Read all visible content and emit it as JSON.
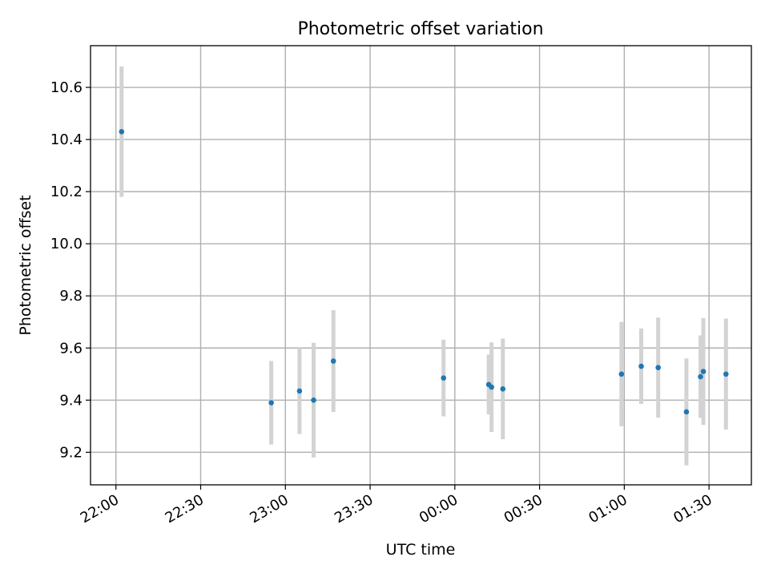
{
  "chart_data": {
    "type": "scatter",
    "title": "Photometric offset variation",
    "xlabel": "UTC time",
    "ylabel": "Photometric offset",
    "x_tick_labels": [
      "22:00",
      "22:30",
      "23:00",
      "23:30",
      "00:00",
      "00:30",
      "01:00",
      "01:30"
    ],
    "y_tick_labels": [
      "9.2",
      "9.4",
      "9.6",
      "9.8",
      "10.0",
      "10.2",
      "10.4",
      "10.6"
    ],
    "y_ticks": [
      9.2,
      9.4,
      9.6,
      9.8,
      10.0,
      10.2,
      10.4,
      10.6
    ],
    "xlim": [
      "21:51",
      "01:45"
    ],
    "ylim": [
      9.075,
      10.76
    ],
    "grid": true,
    "series": [
      {
        "points": [
          {
            "x": "22:02",
            "y": 10.43,
            "err": 0.25
          },
          {
            "x": "22:55",
            "y": 9.39,
            "err": 0.16
          },
          {
            "x": "23:05",
            "y": 9.435,
            "err": 0.165
          },
          {
            "x": "23:10",
            "y": 9.4,
            "err": 0.22
          },
          {
            "x": "23:17",
            "y": 9.55,
            "err": 0.195
          },
          {
            "x": "23:56",
            "y": 9.485,
            "err": 0.147
          },
          {
            "x": "00:12",
            "y": 9.46,
            "err": 0.115
          },
          {
            "x": "00:13",
            "y": 9.45,
            "err": 0.172
          },
          {
            "x": "00:17",
            "y": 9.443,
            "err": 0.193
          },
          {
            "x": "00:59",
            "y": 9.5,
            "err": 0.2
          },
          {
            "x": "01:06",
            "y": 9.53,
            "err": 0.145
          },
          {
            "x": "01:12",
            "y": 9.525,
            "err": 0.192
          },
          {
            "x": "01:22",
            "y": 9.355,
            "err": 0.205
          },
          {
            "x": "01:27",
            "y": 9.49,
            "err": 0.158
          },
          {
            "x": "01:28",
            "y": 9.51,
            "err": 0.205
          },
          {
            "x": "01:36",
            "y": 9.5,
            "err": 0.213
          }
        ]
      }
    ],
    "colors": {
      "marker": "#1f77b4",
      "errorbar": "#d3d3d3",
      "grid": "#b0b0b0",
      "axes": "#000000"
    }
  }
}
